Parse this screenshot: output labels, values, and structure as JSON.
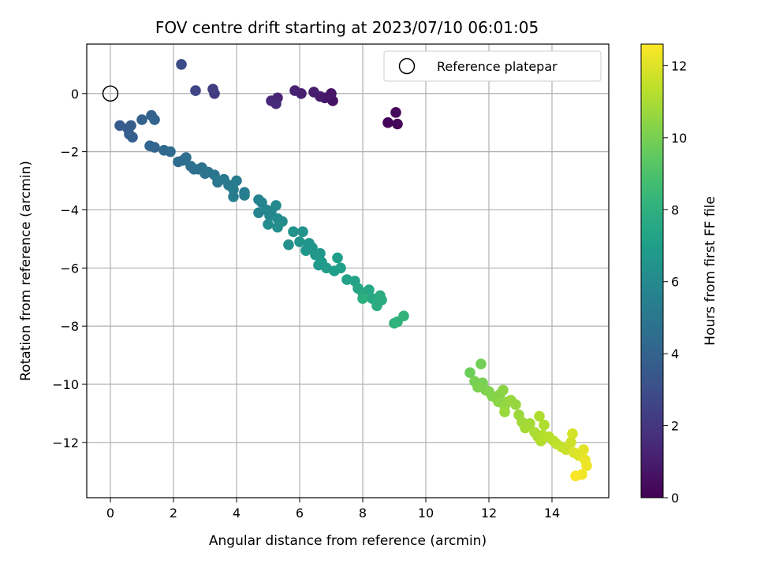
{
  "chart_data": {
    "type": "scatter",
    "title": "FOV centre drift starting at 2023/07/10 06:01:05",
    "xlabel": "Angular distance from reference (arcmin)",
    "ylabel": "Rotation from reference (arcmin)",
    "xlim": [
      -0.75,
      15.8
    ],
    "ylim": [
      -13.9,
      1.7
    ],
    "xticks": [
      0,
      2,
      4,
      6,
      8,
      10,
      12,
      14
    ],
    "yticks": [
      0,
      -2,
      -4,
      -6,
      -8,
      -10,
      -12
    ],
    "grid": true,
    "legend": {
      "placement": "top-right",
      "entries": [
        "Reference platepar"
      ]
    },
    "reference_point": {
      "x": 0,
      "y": 0
    },
    "colorbar": {
      "label": "Hours from first FF file",
      "range": [
        0,
        12.6
      ],
      "ticks": [
        0,
        2,
        4,
        6,
        8,
        10,
        12
      ],
      "colormap": "viridis"
    },
    "point_columns": [
      "x",
      "y",
      "hours"
    ],
    "points": [
      [
        8.8,
        -1.0,
        0.1
      ],
      [
        9.1,
        -1.05,
        0.2
      ],
      [
        9.05,
        -0.65,
        0.3
      ],
      [
        7.05,
        -0.25,
        0.6
      ],
      [
        7.0,
        0.0,
        0.7
      ],
      [
        6.8,
        -0.15,
        0.8
      ],
      [
        6.65,
        -0.1,
        0.9
      ],
      [
        6.45,
        0.05,
        1.0
      ],
      [
        6.05,
        0.0,
        1.1
      ],
      [
        5.85,
        0.1,
        1.2
      ],
      [
        5.3,
        -0.15,
        1.3
      ],
      [
        5.1,
        -0.25,
        1.4
      ],
      [
        5.25,
        -0.35,
        1.5
      ],
      [
        3.3,
        0.0,
        2.2
      ],
      [
        3.25,
        0.15,
        2.3
      ],
      [
        2.7,
        0.1,
        2.6
      ],
      [
        2.25,
        1.0,
        2.9
      ],
      [
        0.3,
        -1.1,
        3.6
      ],
      [
        0.55,
        -1.2,
        3.7
      ],
      [
        0.65,
        -1.1,
        3.7
      ],
      [
        0.6,
        -1.4,
        3.8
      ],
      [
        0.7,
        -1.5,
        3.8
      ],
      [
        1.0,
        -0.9,
        3.9
      ],
      [
        1.3,
        -0.75,
        3.9
      ],
      [
        1.4,
        -0.9,
        4.0
      ],
      [
        1.25,
        -1.8,
        4.1
      ],
      [
        1.4,
        -1.85,
        4.1
      ],
      [
        1.7,
        -1.95,
        4.2
      ],
      [
        1.9,
        -2.0,
        4.3
      ],
      [
        2.15,
        -2.35,
        4.4
      ],
      [
        2.3,
        -2.3,
        4.4
      ],
      [
        2.4,
        -2.2,
        4.5
      ],
      [
        2.55,
        -2.5,
        4.6
      ],
      [
        2.65,
        -2.6,
        4.6
      ],
      [
        2.8,
        -2.6,
        4.7
      ],
      [
        2.9,
        -2.55,
        4.7
      ],
      [
        3.0,
        -2.75,
        4.8
      ],
      [
        3.1,
        -2.7,
        4.8
      ],
      [
        3.3,
        -2.8,
        4.9
      ],
      [
        3.4,
        -3.05,
        5.0
      ],
      [
        3.6,
        -2.95,
        5.0
      ],
      [
        3.75,
        -3.15,
        5.1
      ],
      [
        3.9,
        -3.3,
        5.2
      ],
      [
        4.0,
        -3.0,
        5.2
      ],
      [
        3.9,
        -3.55,
        5.3
      ],
      [
        4.25,
        -3.4,
        5.3
      ],
      [
        4.25,
        -3.5,
        5.4
      ],
      [
        4.7,
        -3.65,
        5.6
      ],
      [
        4.8,
        -3.75,
        5.7
      ],
      [
        4.7,
        -4.1,
        5.7
      ],
      [
        4.95,
        -4.0,
        5.8
      ],
      [
        5.05,
        -4.2,
        5.8
      ],
      [
        5.1,
        -4.05,
        5.9
      ],
      [
        5.25,
        -3.85,
        6.0
      ],
      [
        5.3,
        -4.3,
        6.0
      ],
      [
        5.45,
        -4.4,
        6.1
      ],
      [
        5.0,
        -4.5,
        6.1
      ],
      [
        5.3,
        -4.6,
        6.2
      ],
      [
        5.65,
        -5.2,
        6.3
      ],
      [
        5.8,
        -4.75,
        6.4
      ],
      [
        6.1,
        -4.75,
        6.4
      ],
      [
        6.0,
        -5.1,
        6.5
      ],
      [
        6.3,
        -5.15,
        6.5
      ],
      [
        6.4,
        -5.3,
        6.6
      ],
      [
        6.2,
        -5.4,
        6.6
      ],
      [
        6.5,
        -5.55,
        6.7
      ],
      [
        6.65,
        -5.5,
        6.7
      ],
      [
        6.7,
        -5.8,
        6.8
      ],
      [
        6.6,
        -5.9,
        6.8
      ],
      [
        6.85,
        -6.0,
        6.9
      ],
      [
        7.2,
        -5.65,
        7.0
      ],
      [
        7.1,
        -6.1,
        7.0
      ],
      [
        7.3,
        -6.0,
        7.1
      ],
      [
        7.5,
        -6.4,
        7.2
      ],
      [
        7.75,
        -6.45,
        7.3
      ],
      [
        7.85,
        -6.7,
        7.4
      ],
      [
        8.0,
        -6.85,
        7.5
      ],
      [
        8.2,
        -6.75,
        7.5
      ],
      [
        8.3,
        -7.05,
        7.6
      ],
      [
        8.45,
        -7.2,
        7.7
      ],
      [
        8.6,
        -7.1,
        7.7
      ],
      [
        8.55,
        -6.95,
        7.8
      ],
      [
        8.45,
        -7.3,
        7.8
      ],
      [
        8.0,
        -7.05,
        7.9
      ],
      [
        9.0,
        -7.9,
        8.0
      ],
      [
        9.1,
        -7.85,
        8.1
      ],
      [
        9.3,
        -7.65,
        8.2
      ],
      [
        11.4,
        -9.6,
        9.8
      ],
      [
        11.75,
        -9.3,
        9.9
      ],
      [
        11.55,
        -9.9,
        10.0
      ],
      [
        11.8,
        -9.95,
        10.0
      ],
      [
        11.65,
        -10.1,
        10.1
      ],
      [
        11.9,
        -10.2,
        10.1
      ],
      [
        12.0,
        -10.25,
        10.2
      ],
      [
        12.1,
        -10.4,
        10.2
      ],
      [
        12.25,
        -10.5,
        10.3
      ],
      [
        12.35,
        -10.35,
        10.3
      ],
      [
        12.45,
        -10.2,
        10.4
      ],
      [
        12.3,
        -10.6,
        10.4
      ],
      [
        12.5,
        -10.75,
        10.5
      ],
      [
        12.6,
        -10.6,
        10.5
      ],
      [
        12.7,
        -10.55,
        10.6
      ],
      [
        12.85,
        -10.7,
        10.6
      ],
      [
        12.5,
        -10.95,
        10.7
      ],
      [
        12.95,
        -11.05,
        10.7
      ],
      [
        13.05,
        -11.3,
        10.8
      ],
      [
        13.15,
        -11.5,
        10.9
      ],
      [
        13.3,
        -11.35,
        10.9
      ],
      [
        13.45,
        -11.65,
        11.0
      ],
      [
        13.55,
        -11.8,
        11.0
      ],
      [
        13.6,
        -11.1,
        11.1
      ],
      [
        13.75,
        -11.4,
        11.1
      ],
      [
        13.7,
        -11.75,
        11.2
      ],
      [
        13.65,
        -11.95,
        11.2
      ],
      [
        13.9,
        -11.8,
        11.3
      ],
      [
        14.05,
        -11.95,
        11.3
      ],
      [
        14.15,
        -12.05,
        11.4
      ],
      [
        14.3,
        -12.15,
        11.5
      ],
      [
        14.45,
        -12.25,
        11.6
      ],
      [
        14.6,
        -12.0,
        11.7
      ],
      [
        14.65,
        -11.7,
        11.8
      ],
      [
        14.7,
        -12.35,
        11.9
      ],
      [
        14.85,
        -12.45,
        12.0
      ],
      [
        15.0,
        -12.25,
        12.1
      ],
      [
        15.05,
        -12.6,
        12.2
      ],
      [
        15.1,
        -12.8,
        12.3
      ],
      [
        14.95,
        -13.1,
        12.4
      ],
      [
        14.75,
        -13.15,
        12.5
      ]
    ]
  }
}
